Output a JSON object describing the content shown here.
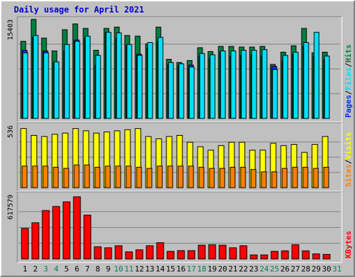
{
  "chart_data": {
    "title": "Daily usage for April 2021",
    "type": "bar",
    "days": [
      "1",
      "2",
      "3",
      "4",
      "5",
      "6",
      "7",
      "8",
      "9",
      "10",
      "11",
      "12",
      "13",
      "14",
      "15",
      "16",
      "17",
      "18",
      "19",
      "20",
      "21",
      "22",
      "23",
      "24",
      "25",
      "26",
      "27",
      "28",
      "29",
      "30",
      "31"
    ],
    "weekend_days": [
      3,
      4,
      10,
      11,
      17,
      18,
      24,
      25,
      31
    ],
    "colors": {
      "hits": "#008040",
      "files": "#00e0ff",
      "pages": "#0030ff",
      "visits": "#ffff00",
      "sites": "#ff8000",
      "kbytes": "#ff0000",
      "title": "#0000cc",
      "weekend_label": "#00805c"
    },
    "panels": [
      {
        "id": "top",
        "max_label": "15403",
        "ymax": 15403,
        "legend": [
          {
            "text": "Hits",
            "color": "#008040"
          },
          {
            "text": "/",
            "color": "#000000"
          },
          {
            "text": "Files",
            "color": "#00e0ff"
          },
          {
            "text": "/",
            "color": "#000000"
          },
          {
            "text": "Pages",
            "color": "#0030ff"
          }
        ],
        "series": [
          {
            "name": "Hits",
            "values": [
              12000,
              15403,
              12500,
              10500,
              13800,
              14700,
              14000,
              10600,
              14000,
              14200,
              12900,
              12800,
              11600,
              14200,
              9200,
              8700,
              9000,
              11000,
              10400,
              11200,
              11200,
              11100,
              11100,
              11200,
              8400,
              10300,
              11300,
              14000,
              10200,
              10300,
              0
            ]
          },
          {
            "name": "Files",
            "values": [
              10200,
              12900,
              10200,
              8800,
              11500,
              12000,
              12800,
              9800,
              13400,
              13300,
              11500,
              9800,
              11800,
              12600,
              8700,
              8500,
              8000,
              10100,
              9900,
              10500,
              10500,
              10600,
              10600,
              10700,
              7600,
              9800,
              10300,
              11800,
              13400,
              9700,
              0
            ]
          },
          {
            "name": "Pages",
            "values": [
              10600,
              12600,
              10500,
              8700,
              10500,
              12200,
              12400,
              8300,
              13300,
              12500,
              11400,
              10000,
              11000,
              12000,
              8400,
              8200,
              8300,
              9700,
              9300,
              10300,
              9600,
              9800,
              9900,
              9700,
              8100,
              9000,
              10000,
              11200,
              9700,
              9200,
              0
            ]
          }
        ]
      },
      {
        "id": "middle",
        "max_label": "536",
        "ymax": 536,
        "legend": [
          {
            "text": "Visits",
            "color": "#ffff00"
          },
          {
            "text": "/",
            "color": "#000000"
          },
          {
            "text": "Sites",
            "color": "#ff8000"
          }
        ],
        "series": [
          {
            "name": "Visits",
            "values": [
              520,
              460,
              450,
              470,
              480,
              520,
              500,
              480,
              490,
              500,
              510,
              520,
              450,
              430,
              450,
              460,
              400,
              360,
              330,
              370,
              400,
              400,
              330,
              330,
              390,
              370,
              380,
              310,
              380,
              450,
              0
            ]
          },
          {
            "name": "Sites",
            "values": [
              190,
              190,
              190,
              180,
              170,
              200,
              200,
              180,
              190,
              190,
              190,
              180,
              170,
              190,
              190,
              190,
              190,
              180,
              170,
              170,
              180,
              180,
              160,
              140,
              140,
              170,
              180,
              180,
              170,
              180,
              0
            ]
          }
        ]
      },
      {
        "id": "bottom",
        "max_label": "617579",
        "ymax": 617579,
        "legend": [
          {
            "text": "KBytes",
            "color": "#ff0000"
          }
        ],
        "series": [
          {
            "name": "KBytes",
            "values": [
              300000,
              355000,
              475000,
              515000,
              560000,
              610000,
              430000,
              120000,
              110000,
              130000,
              70000,
              90000,
              130000,
              160000,
              75000,
              82000,
              82000,
              135000,
              140000,
              135000,
              110000,
              130000,
              40000,
              40000,
              75000,
              80000,
              140000,
              80000,
              50000,
              45000,
              0
            ]
          }
        ]
      }
    ]
  }
}
